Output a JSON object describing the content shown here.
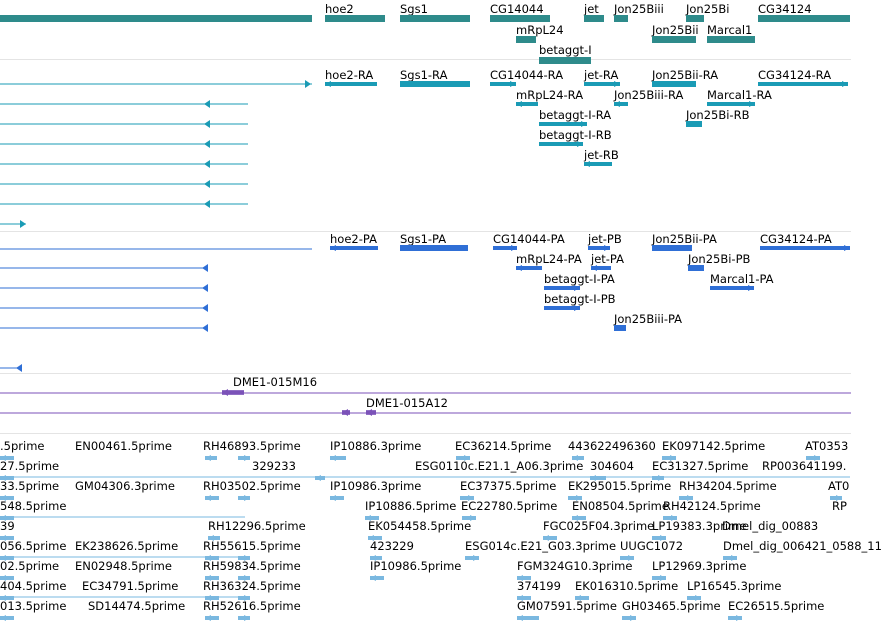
{
  "colors": {
    "gene": "#2e8b8b",
    "mrna": "#1a9bb5",
    "protein": "#2f6fd6",
    "clone": "#7b52b8",
    "est": "#7ab8e0",
    "separator": "#e4e4e4",
    "text": "#000000"
  },
  "tracks": {
    "genes": {
      "labels": [
        "hoe2",
        "Sgs1",
        "CG14044",
        "jet",
        "Jon25Biii",
        "Jon25Bi",
        "CG34124",
        "mRpL24",
        "Jon25Bii",
        "Marcal1",
        "betaggt-I"
      ]
    },
    "transcripts": {
      "labels": [
        "hoe2-RA",
        "Sgs1-RA",
        "CG14044-RA",
        "jet-RA",
        "Jon25Bii-RA",
        "CG34124-RA",
        "mRpL24-RA",
        "Jon25Biii-RA",
        "Marcal1-RA",
        "betaggt-I-RA",
        "Jon25Bi-RB",
        "betaggt-I-RB",
        "jet-RB"
      ]
    },
    "proteins": {
      "labels": [
        "hoe2-PA",
        "Sgs1-PA",
        "CG14044-PA",
        "jet-PB",
        "Jon25Bii-PA",
        "CG34124-PA",
        "mRpL24-PA",
        "jet-PA",
        "Jon25Bi-PB",
        "betaggt-I-PA",
        "Marcal1-PA",
        "betaggt-I-PB",
        "Jon25Biii-PA"
      ]
    },
    "clones": {
      "labels": [
        "DME1-015M16",
        "DME1-015A12"
      ]
    },
    "ests": {
      "labels": [
        ".5prime",
        "EN00461.5prime",
        "RH46893.5prime",
        "IP10886.3prime",
        "EC36214.5prime",
        "443622496360",
        "EK097142.5prime",
        "AT0353",
        "27.5prime",
        "329233",
        "ESG0110c.E21.1_A06.3prime",
        "304604",
        "EC31327.5prime",
        "RP003641199.",
        "33.5prime",
        "GM04306.3prime",
        "RH03502.5prime",
        "IP10986.3prime",
        "EC37375.5prime",
        "EK295015.5prime",
        "RH34204.5prime",
        "AT0",
        "548.5prime",
        "IP10886.5prime",
        "EC22780.5prime",
        "EN08504.5prime",
        "RH42124.5prime",
        "RP",
        "39",
        "RH12296.5prime",
        "EK054458.5prime",
        "FGC025F04.3prime",
        "LP19383.3prime",
        "Dmel_dig_00883",
        "056.5prime",
        "EK238626.5prime",
        "RH55615.5prime",
        "423229",
        "ESG014c.E21_G03.3prime",
        "UUGC1072",
        "Dmel_dig_006421_0588_11",
        "02.5prime",
        "EN02948.5prime",
        "RH59834.5prime",
        "IP10986.5prime",
        "FGM324G10.3prime",
        "LP12969.3prime",
        "404.5prime",
        "EC34791.5prime",
        "RH36324.5prime",
        "374199",
        "EK016310.5prime",
        "LP16545.3prime",
        "013.5prime",
        "SD14474.5prime",
        "RH52616.5prime",
        "GM07591.5prime",
        "GH03465.5prime",
        "EC26515.5prime"
      ]
    }
  }
}
